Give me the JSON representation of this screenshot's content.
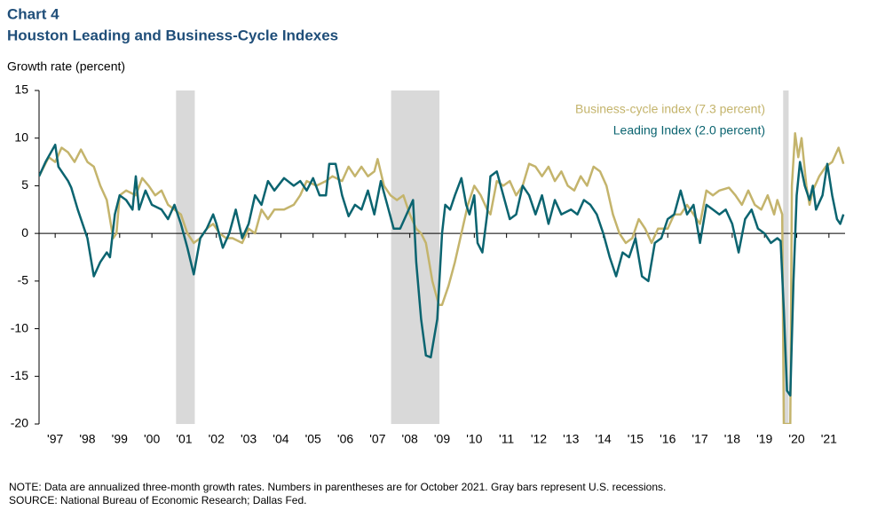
{
  "chart_data": {
    "type": "line",
    "title": "Chart 4",
    "subtitle": "Houston Leading and Business-Cycle Indexes",
    "ylabel": "Growth rate (percent)",
    "xlim": [
      1997,
      2022
    ],
    "ylim": [
      -20,
      15
    ],
    "yticks": [
      -20,
      -15,
      -10,
      -5,
      0,
      5,
      10,
      15
    ],
    "xticks": [
      {
        "value": 1997.5,
        "label": "'97"
      },
      {
        "value": 1998.5,
        "label": "'98"
      },
      {
        "value": 1999.5,
        "label": "'99"
      },
      {
        "value": 2000.5,
        "label": "'00"
      },
      {
        "value": 2001.5,
        "label": "'01"
      },
      {
        "value": 2002.5,
        "label": "'02"
      },
      {
        "value": 2003.5,
        "label": "'03"
      },
      {
        "value": 2004.5,
        "label": "'04"
      },
      {
        "value": 2005.5,
        "label": "'05"
      },
      {
        "value": 2006.5,
        "label": "'06"
      },
      {
        "value": 2007.5,
        "label": "'07"
      },
      {
        "value": 2008.5,
        "label": "'08"
      },
      {
        "value": 2009.5,
        "label": "'09"
      },
      {
        "value": 2010.5,
        "label": "'10"
      },
      {
        "value": 2011.5,
        "label": "'11"
      },
      {
        "value": 2012.5,
        "label": "'12"
      },
      {
        "value": 2013.5,
        "label": "'13"
      },
      {
        "value": 2014.5,
        "label": "'14"
      },
      {
        "value": 2015.5,
        "label": "'15"
      },
      {
        "value": 2016.5,
        "label": "'16"
      },
      {
        "value": 2017.5,
        "label": "'17"
      },
      {
        "value": 2018.5,
        "label": "'18"
      },
      {
        "value": 2019.5,
        "label": "'19"
      },
      {
        "value": 2020.5,
        "label": "'20"
      },
      {
        "value": 2021.5,
        "label": "'21"
      }
    ],
    "recessions": [
      [
        2001.25,
        2001.83
      ],
      [
        2007.92,
        2009.42
      ],
      [
        2020.08,
        2020.25
      ]
    ],
    "recession_color": "#d9d9d9",
    "series": [
      {
        "name": "Business-cycle index (7.3 percent)",
        "color": "#c4b46c",
        "x": [
          1997.0,
          1997.3,
          1997.5,
          1997.7,
          1997.9,
          1998.1,
          1998.3,
          1998.5,
          1998.7,
          1998.9,
          1999.1,
          1999.3,
          1999.4,
          1999.5,
          1999.7,
          2000.0,
          2000.2,
          2000.4,
          2000.6,
          2000.8,
          2001.0,
          2001.2,
          2001.4,
          2001.6,
          2001.8,
          2002.0,
          2002.2,
          2002.4,
          2002.6,
          2002.8,
          2003.0,
          2003.3,
          2003.5,
          2003.7,
          2003.9,
          2004.1,
          2004.3,
          2004.6,
          2004.9,
          2005.1,
          2005.3,
          2005.6,
          2005.9,
          2006.1,
          2006.4,
          2006.6,
          2006.8,
          2007.0,
          2007.2,
          2007.4,
          2007.5,
          2007.7,
          2007.9,
          2008.1,
          2008.3,
          2008.5,
          2008.7,
          2008.85,
          2009.0,
          2009.2,
          2009.4,
          2009.5,
          2009.7,
          2009.9,
          2010.1,
          2010.3,
          2010.5,
          2010.7,
          2010.9,
          2011.0,
          2011.2,
          2011.4,
          2011.6,
          2011.8,
          2012.0,
          2012.2,
          2012.4,
          2012.6,
          2012.8,
          2013.0,
          2013.2,
          2013.4,
          2013.6,
          2013.8,
          2014.0,
          2014.2,
          2014.4,
          2014.6,
          2014.8,
          2015.0,
          2015.2,
          2015.4,
          2015.6,
          2015.8,
          2016.0,
          2016.2,
          2016.5,
          2016.7,
          2016.9,
          2017.1,
          2017.3,
          2017.5,
          2017.7,
          2017.9,
          2018.1,
          2018.4,
          2018.6,
          2018.8,
          2019.0,
          2019.2,
          2019.4,
          2019.6,
          2019.8,
          2019.9,
          2020.05,
          2020.1,
          2020.3,
          2020.35,
          2020.45,
          2020.55,
          2020.65,
          2020.8,
          2020.9,
          2021.0,
          2021.2,
          2021.4,
          2021.6,
          2021.8,
          2021.95
        ],
        "values": [
          6,
          8,
          7.5,
          9,
          8.5,
          7.5,
          8.8,
          7.5,
          7,
          5,
          3.5,
          -0.5,
          0,
          4,
          4.5,
          4,
          5.8,
          5,
          4,
          4.5,
          3,
          2.5,
          2,
          0,
          -1,
          -0.5,
          0.5,
          1,
          0,
          -0.5,
          -0.5,
          -1,
          0.5,
          0,
          2.5,
          1.5,
          2.5,
          2.5,
          3,
          4,
          5.5,
          5,
          5.5,
          6,
          5.5,
          7,
          6,
          7,
          6,
          6.5,
          7.8,
          5,
          4,
          3.5,
          4,
          2,
          0.5,
          0,
          -1,
          -5,
          -7.5,
          -7.5,
          -5.5,
          -3,
          0,
          3,
          5,
          4,
          2.5,
          2,
          5.5,
          5,
          5.5,
          4,
          5,
          7.3,
          7,
          6,
          7,
          5.5,
          6.5,
          5,
          4.5,
          6,
          5,
          7,
          6.5,
          5,
          2,
          0,
          -1,
          -0.5,
          1.5,
          0.5,
          -1,
          0.5,
          0.5,
          2,
          2,
          3,
          2,
          1,
          4.5,
          4,
          4.5,
          4.8,
          4,
          3,
          4.5,
          3,
          2.5,
          4,
          2,
          3.5,
          2,
          -20,
          -20,
          5,
          10.5,
          8,
          10,
          5,
          3,
          4.5,
          6,
          7,
          7.5,
          9,
          7.3
        ]
      },
      {
        "name": "Leading Index  (2.0 percent)",
        "color": "#0b6470",
        "x": [
          1997.0,
          1997.2,
          1997.5,
          1997.6,
          1997.9,
          1998.0,
          1998.2,
          1998.5,
          1998.7,
          1998.9,
          1999.1,
          1999.2,
          1999.35,
          1999.5,
          1999.7,
          1999.9,
          2000.0,
          2000.1,
          2000.3,
          2000.5,
          2000.8,
          2001.0,
          2001.2,
          2001.4,
          2001.6,
          2001.8,
          2002.0,
          2002.2,
          2002.4,
          2002.5,
          2002.7,
          2002.9,
          2003.1,
          2003.3,
          2003.5,
          2003.7,
          2003.9,
          2004.1,
          2004.3,
          2004.6,
          2004.9,
          2005.1,
          2005.3,
          2005.5,
          2005.7,
          2005.9,
          2006.0,
          2006.2,
          2006.4,
          2006.6,
          2006.8,
          2007.0,
          2007.2,
          2007.4,
          2007.6,
          2007.8,
          2008.0,
          2008.2,
          2008.4,
          2008.6,
          2008.7,
          2008.85,
          2009.0,
          2009.15,
          2009.35,
          2009.5,
          2009.6,
          2009.75,
          2009.9,
          2010.1,
          2010.25,
          2010.35,
          2010.5,
          2010.6,
          2010.75,
          2010.9,
          2011.0,
          2011.2,
          2011.4,
          2011.6,
          2011.8,
          2012.0,
          2012.2,
          2012.4,
          2012.6,
          2012.8,
          2013.0,
          2013.2,
          2013.5,
          2013.7,
          2013.9,
          2014.1,
          2014.3,
          2014.5,
          2014.7,
          2014.9,
          2015.1,
          2015.3,
          2015.5,
          2015.7,
          2015.9,
          2016.1,
          2016.3,
          2016.5,
          2016.7,
          2016.9,
          2017.1,
          2017.3,
          2017.5,
          2017.7,
          2017.9,
          2018.1,
          2018.3,
          2018.5,
          2018.7,
          2018.9,
          2019.1,
          2019.3,
          2019.5,
          2019.7,
          2019.9,
          2020.0,
          2020.1,
          2020.2,
          2020.3,
          2020.4,
          2020.5,
          2020.6,
          2020.75,
          2020.9,
          2021.0,
          2021.1,
          2021.3,
          2021.45,
          2021.6,
          2021.75,
          2021.85,
          2021.95
        ],
        "values": [
          6,
          7.5,
          9.3,
          7,
          5.5,
          4.8,
          2.5,
          -0.5,
          -4.5,
          -3,
          -2,
          -2.5,
          2,
          4,
          3.5,
          2.5,
          6,
          2.5,
          4.5,
          3,
          2.5,
          1.5,
          3,
          1,
          -1.5,
          -4.3,
          -0.5,
          0.5,
          2,
          1,
          -1.5,
          0,
          2.5,
          -0.5,
          1,
          4,
          3,
          5.5,
          4.5,
          5.8,
          5,
          5.5,
          4.5,
          5.8,
          4,
          4,
          7.3,
          7.3,
          4,
          1.8,
          3,
          2.5,
          4.5,
          2,
          5.5,
          3,
          0.5,
          0.5,
          2,
          3.5,
          -3,
          -9,
          -12.8,
          -13,
          -9,
          0,
          3,
          2.5,
          4,
          5.8,
          3,
          2,
          4,
          -1,
          -2,
          2,
          6,
          6.5,
          4,
          1.5,
          2,
          5,
          4,
          2,
          4,
          1,
          3.5,
          2,
          2.5,
          2,
          3.5,
          3,
          2,
          0,
          -2.5,
          -4.5,
          -2,
          -2.5,
          -0.5,
          -4.5,
          -5,
          -1,
          -0.5,
          1.5,
          2,
          4.5,
          2,
          3,
          -1,
          3,
          2.5,
          2,
          2.5,
          1,
          -2,
          1.5,
          2.5,
          0.5,
          0,
          -1,
          -0.5,
          -0.8,
          -8,
          -16.5,
          -17,
          -5,
          4,
          7.5,
          5,
          3.5,
          5,
          2.5,
          4,
          7.3,
          4,
          1.5,
          1,
          2
        ]
      }
    ],
    "notes": [
      "NOTE: Data are annualized three-month growth rates. Numbers in parentheses are for October 2021. Gray bars represent U.S. recessions.",
      "SOURCE: National Bureau of Economic Research; Dallas Fed."
    ]
  }
}
